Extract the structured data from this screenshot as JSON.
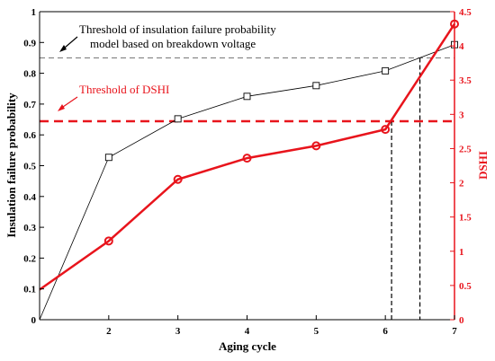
{
  "chart_data": {
    "type": "line",
    "xlabel": "Aging cycle",
    "x_ticks": [
      2,
      3,
      4,
      5,
      6,
      7
    ],
    "xlim": [
      1,
      7
    ],
    "left_axis": {
      "label": "Insulation failure probability",
      "ylim": [
        0,
        1
      ],
      "ticks": [
        "0",
        "0.1",
        "0.2",
        "0.3",
        "0.4",
        "0.5",
        "0.6",
        "0.7",
        "0.8",
        "0.9",
        "1"
      ],
      "color": "#000000"
    },
    "right_axis": {
      "label": "DSHI",
      "ylim": [
        0,
        4.5
      ],
      "ticks": [
        "0",
        "0.5",
        "1",
        "1.5",
        "2",
        "2.5",
        "3",
        "3.5",
        "4",
        "4.5"
      ],
      "color": "#e8141c"
    },
    "series": [
      {
        "axis": "left",
        "color": "#000000",
        "marker": "square",
        "x": [
          1,
          2,
          3,
          4,
          5,
          6,
          7
        ],
        "y": [
          0.0,
          0.527,
          0.652,
          0.725,
          0.76,
          0.808,
          0.893
        ]
      },
      {
        "axis": "right",
        "color": "#e8141c",
        "marker": "circle",
        "x": [
          1,
          2,
          3,
          4,
          5,
          6,
          7
        ],
        "y": [
          0.44,
          1.15,
          2.05,
          2.36,
          2.54,
          2.78,
          4.32
        ]
      }
    ],
    "thresholds": [
      {
        "axis": "left",
        "value": 0.85,
        "color": "#777777",
        "label_lines": [
          "Threshold of insulation failure probability",
          "model based on breakdown voltage"
        ],
        "drop_x": 6.5
      },
      {
        "axis": "right",
        "value": 2.9,
        "color": "#e8141c",
        "label_lines": [
          "Threshold of DSHI"
        ],
        "drop_x": 6.09
      }
    ],
    "grid": false
  }
}
